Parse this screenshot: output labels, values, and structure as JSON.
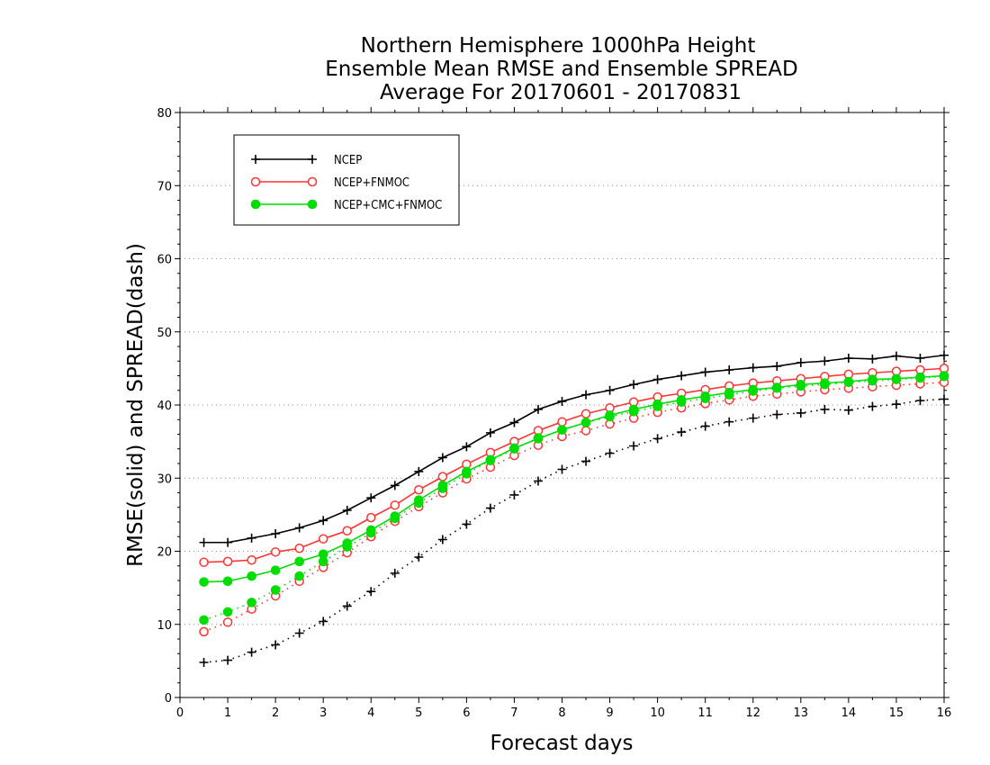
{
  "chart_data": {
    "type": "line",
    "title": [
      "Northern Hemisphere 1000hPa Height",
      "Ensemble Mean RMSE and Ensemble SPREAD",
      "Average For 20170601 - 20170831"
    ],
    "xlabel": "Forecast days",
    "ylabel": "RMSE(solid) and SPREAD(dash)",
    "xlim": [
      0,
      16
    ],
    "ylim": [
      0,
      80
    ],
    "xticks": [
      0,
      1,
      2,
      3,
      4,
      5,
      6,
      7,
      8,
      9,
      10,
      11,
      12,
      13,
      14,
      15,
      16
    ],
    "yticks": [
      0,
      10,
      20,
      30,
      40,
      50,
      60,
      70,
      80
    ],
    "grid": "horizontal-dotted",
    "legend_position": "top-left",
    "x": [
      0.5,
      1,
      1.5,
      2,
      2.5,
      3,
      3.5,
      4,
      4.5,
      5,
      5.5,
      6,
      6.5,
      7,
      7.5,
      8,
      8.5,
      9,
      9.5,
      10,
      10.5,
      11,
      11.5,
      12,
      12.5,
      13,
      13.5,
      14,
      14.5,
      15,
      15.5,
      16
    ],
    "series": [
      {
        "name": "NCEP",
        "color": "#000000",
        "marker": "plus",
        "rmse": [
          21.2,
          21.2,
          21.8,
          22.4,
          23.2,
          24.2,
          25.6,
          27.3,
          29.0,
          30.9,
          32.8,
          34.3,
          36.2,
          37.6,
          39.4,
          40.5,
          41.4,
          42.0,
          42.8,
          43.5,
          44.0,
          44.5,
          44.8,
          45.1,
          45.3,
          45.8,
          46.0,
          46.4,
          46.3,
          46.7,
          46.4,
          46.8
        ],
        "spread": [
          4.8,
          5.1,
          6.2,
          7.2,
          8.8,
          10.4,
          12.5,
          14.5,
          17.0,
          19.2,
          21.6,
          23.7,
          25.9,
          27.7,
          29.6,
          31.2,
          32.3,
          33.4,
          34.4,
          35.4,
          36.3,
          37.1,
          37.7,
          38.2,
          38.7,
          38.9,
          39.4,
          39.3,
          39.8,
          40.1,
          40.6,
          40.8
        ]
      },
      {
        "name": "NCEP+FNMOC",
        "color": "#ff3333",
        "marker": "open-circle",
        "rmse": [
          18.5,
          18.6,
          18.8,
          19.9,
          20.4,
          21.7,
          22.8,
          24.6,
          26.3,
          28.4,
          30.2,
          31.9,
          33.5,
          35.0,
          36.5,
          37.7,
          38.8,
          39.6,
          40.4,
          41.1,
          41.6,
          42.1,
          42.6,
          43.0,
          43.3,
          43.6,
          43.9,
          44.2,
          44.4,
          44.6,
          44.8,
          45.0
        ],
        "spread": [
          9.0,
          10.3,
          12.1,
          13.9,
          15.9,
          17.8,
          19.8,
          22.0,
          24.1,
          26.1,
          28.0,
          29.9,
          31.5,
          33.1,
          34.5,
          35.7,
          36.5,
          37.4,
          38.2,
          39.0,
          39.6,
          40.2,
          40.7,
          41.2,
          41.5,
          41.8,
          42.1,
          42.3,
          42.5,
          42.7,
          42.9,
          43.1
        ]
      },
      {
        "name": "NCEP+CMC+FNMOC",
        "color": "#00dd00",
        "marker": "filled-circle",
        "rmse": [
          15.8,
          15.9,
          16.6,
          17.4,
          18.6,
          19.6,
          21.1,
          22.9,
          24.8,
          27.0,
          29.0,
          30.9,
          32.5,
          34.1,
          35.4,
          36.6,
          37.6,
          38.6,
          39.4,
          40.1,
          40.7,
          41.2,
          41.7,
          42.1,
          42.4,
          42.8,
          43.0,
          43.2,
          43.5,
          43.6,
          43.8,
          44.0
        ],
        "spread": [
          10.6,
          11.7,
          13.0,
          14.7,
          16.6,
          18.6,
          20.6,
          22.5,
          24.5,
          26.6,
          28.6,
          30.6,
          32.4,
          34.0,
          35.5,
          36.6,
          37.6,
          38.4,
          39.1,
          39.8,
          40.4,
          40.9,
          41.4,
          41.9,
          42.3,
          42.6,
          42.8,
          43.1,
          43.3,
          43.5,
          43.7,
          43.9
        ]
      }
    ]
  }
}
